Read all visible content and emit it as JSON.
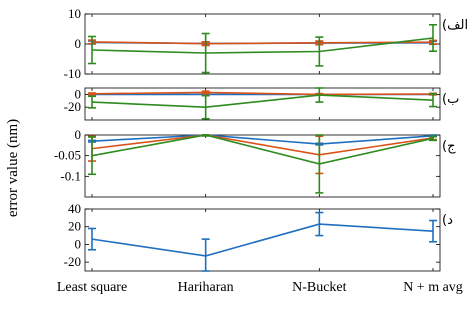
{
  "chart_data": {
    "type": "line",
    "ylabel": "error value (nm)",
    "categories": [
      "Least square",
      "Hariharan",
      "N-Bucket",
      "N + m avg"
    ],
    "colors": {
      "blue": "#1f6fbf",
      "orange": "#d95319",
      "green": "#2e8b1f"
    },
    "panels": [
      {
        "label": "(الف",
        "ylim": [
          -10,
          10
        ],
        "yticks": [
          -10,
          0,
          10
        ],
        "series": [
          {
            "color": "blue",
            "values": [
              0.5,
              0.2,
              0.3,
              0.4
            ],
            "err": [
              0.5,
              0.5,
              0.5,
              0.5
            ]
          },
          {
            "color": "orange",
            "values": [
              0.7,
              0.1,
              0.4,
              0.6
            ],
            "err": [
              0.6,
              0.6,
              0.6,
              0.6
            ]
          },
          {
            "color": "green",
            "values": [
              -2.0,
              -3.0,
              -2.5,
              2.0
            ],
            "err": [
              4.5,
              6.5,
              4.8,
              4.4
            ]
          }
        ]
      },
      {
        "label": "(ب",
        "ylim": [
          -40,
          10
        ],
        "yticks": [
          -20,
          0
        ],
        "series": [
          {
            "color": "blue",
            "values": [
              0,
              0,
              0,
              0
            ],
            "err": [
              0.6,
              0.6,
              0.6,
              0.6
            ]
          },
          {
            "color": "orange",
            "values": [
              1,
              3,
              0,
              0.5
            ],
            "err": [
              1.2,
              2.0,
              1.2,
              1.2
            ]
          },
          {
            "color": "green",
            "values": [
              -12,
              -20,
              -1,
              -9
            ],
            "err": [
              9,
              18,
              11,
              10
            ]
          }
        ]
      },
      {
        "label": "(ج",
        "ylim": [
          -0.15,
          0
        ],
        "yticks": [
          -0.1,
          -0.05,
          0
        ],
        "series": [
          {
            "color": "blue",
            "values": [
              -0.015,
              0,
              -0.022,
              -0.002
            ],
            "err": [
              0.002,
              0.002,
              0.002,
              0.002
            ]
          },
          {
            "color": "orange",
            "values": [
              -0.033,
              0,
              -0.048,
              -0.007
            ],
            "err": [
              0.03,
              0.002,
              0.045,
              0.004
            ]
          },
          {
            "color": "green",
            "values": [
              -0.05,
              0,
              -0.07,
              -0.008
            ],
            "err": [
              0.045,
              0.002,
              0.07,
              0.005
            ]
          }
        ]
      },
      {
        "label": "(د",
        "ylim": [
          -30,
          40
        ],
        "yticks": [
          -20,
          0,
          20,
          40
        ],
        "series": [
          {
            "color": "blue",
            "values": [
              6,
              -13,
              23,
              15
            ],
            "err": [
              12,
              19,
              13,
              12
            ]
          }
        ]
      }
    ]
  }
}
